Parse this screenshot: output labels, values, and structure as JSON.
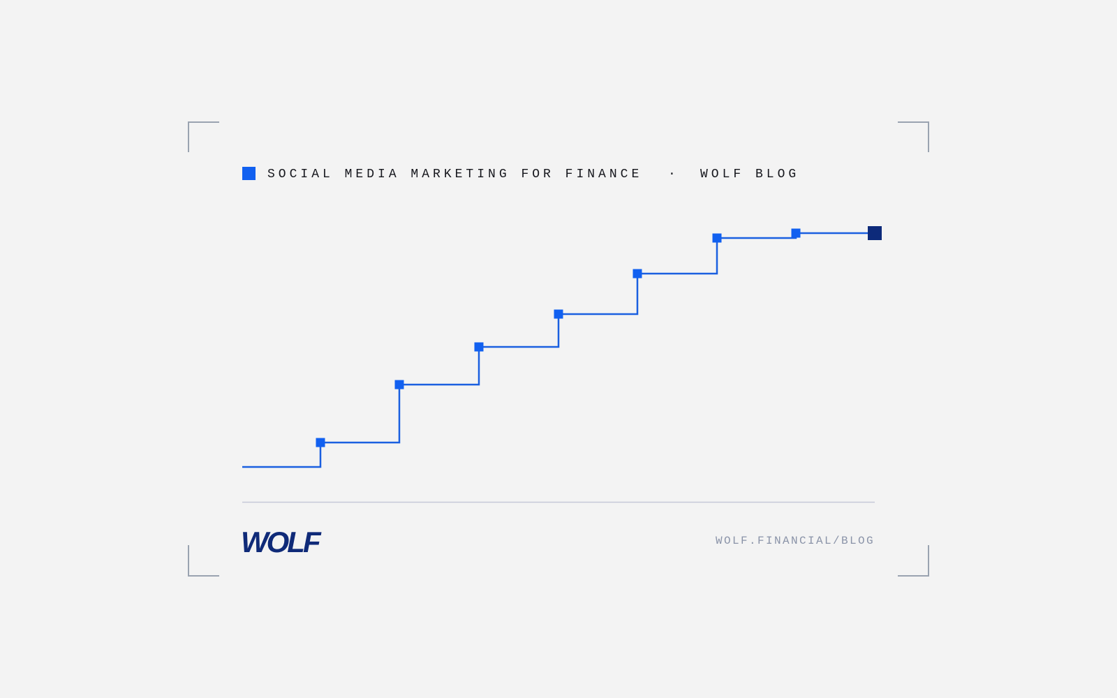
{
  "header": {
    "title": "SOCIAL MEDIA MARKETING FOR FINANCE",
    "separator": "·",
    "source": "WOLF BLOG"
  },
  "footer": {
    "logo": "WOLF",
    "url": "WOLF.FINANCIAL/BLOG"
  }
}
